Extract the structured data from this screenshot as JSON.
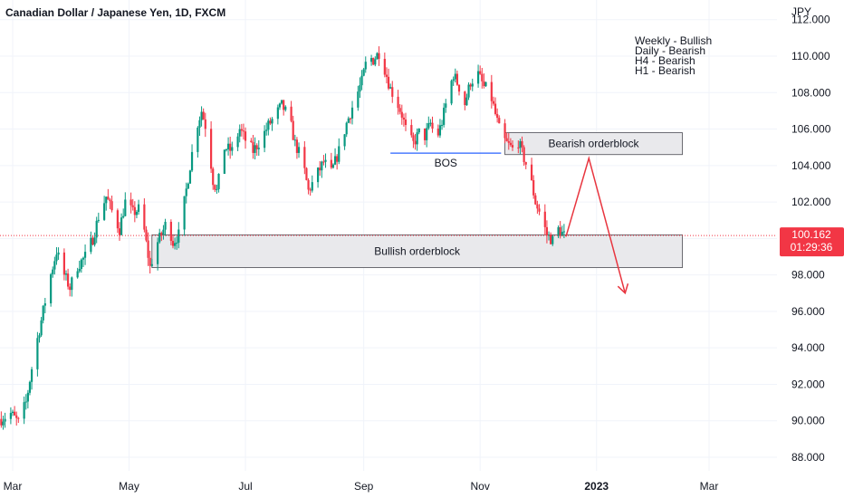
{
  "header": {
    "title": "Canadian Dollar / Japanese Yen, 1D, FXCM",
    "currency": "JPY"
  },
  "notes": [
    "Weekly - Bullish",
    "Daily - Bearish",
    "H4 - Bearish",
    "H1 - Bearish"
  ],
  "price_badge": {
    "price": "100.162",
    "countdown": "01:29:36",
    "color": "#f23645"
  },
  "colors": {
    "up": "#089981",
    "down": "#f23645",
    "arrow": "#e8353f",
    "bos": "#2962ff",
    "box_fill": "#e9e9ec",
    "box_stroke": "#4a4a52",
    "grid": "#f0f3fa"
  },
  "chart_data": {
    "type": "candlestick",
    "title": "Canadian Dollar / Japanese Yen, 1D, FXCM",
    "ylabel": "JPY",
    "ylim": [
      87.6,
      112.2
    ],
    "y_ticks": [
      "88.000",
      "90.000",
      "92.000",
      "94.000",
      "96.000",
      "98.000",
      "100.000",
      "102.000",
      "104.000",
      "106.000",
      "108.000",
      "110.000",
      "112.000"
    ],
    "x_ticks": [
      {
        "label": "Mar",
        "date": "2022-03-01",
        "bold": false
      },
      {
        "label": "May",
        "date": "2022-05-01",
        "bold": false
      },
      {
        "label": "Jul",
        "date": "2022-07-01",
        "bold": false
      },
      {
        "label": "Sep",
        "date": "2022-09-01",
        "bold": false
      },
      {
        "label": "Nov",
        "date": "2022-11-01",
        "bold": false
      },
      {
        "label": "2023",
        "date": "2023-01-01",
        "bold": true
      },
      {
        "label": "Mar",
        "date": "2023-03-01",
        "bold": false
      }
    ],
    "x_range": [
      "2022-02-23",
      "2023-04-10"
    ],
    "last_price": 100.162,
    "price_path": [
      [
        "2022-02-23",
        90.1
      ],
      [
        "2022-02-28",
        90.4
      ],
      [
        "2022-03-04",
        89.9
      ],
      [
        "2022-03-08",
        91.0
      ],
      [
        "2022-03-12",
        93.5
      ],
      [
        "2022-03-16",
        95.5
      ],
      [
        "2022-03-20",
        97.6
      ],
      [
        "2022-03-24",
        99.3
      ],
      [
        "2022-03-28",
        98.0
      ],
      [
        "2022-03-31",
        97.3
      ],
      [
        "2022-04-04",
        98.5
      ],
      [
        "2022-04-08",
        99.0
      ],
      [
        "2022-04-12",
        100.0
      ],
      [
        "2022-04-15",
        101.2
      ],
      [
        "2022-04-19",
        102.3
      ],
      [
        "2022-04-22",
        101.5
      ],
      [
        "2022-04-26",
        100.5
      ],
      [
        "2022-04-29",
        102.0
      ],
      [
        "2022-05-03",
        101.4
      ],
      [
        "2022-05-06",
        101.6
      ],
      [
        "2022-05-09",
        100.4
      ],
      [
        "2022-05-12",
        98.4
      ],
      [
        "2022-05-15",
        99.6
      ],
      [
        "2022-05-18",
        100.2
      ],
      [
        "2022-05-21",
        101.0
      ],
      [
        "2022-05-24",
        99.8
      ],
      [
        "2022-05-27",
        100.2
      ],
      [
        "2022-05-30",
        102.0
      ],
      [
        "2022-06-02",
        104.0
      ],
      [
        "2022-06-05",
        106.0
      ],
      [
        "2022-06-08",
        107.0
      ],
      [
        "2022-06-11",
        105.8
      ],
      [
        "2022-06-14",
        103.2
      ],
      [
        "2022-06-16",
        102.6
      ],
      [
        "2022-06-20",
        105.0
      ],
      [
        "2022-06-24",
        104.8
      ],
      [
        "2022-06-28",
        106.0
      ],
      [
        "2022-07-01",
        105.4
      ],
      [
        "2022-07-05",
        104.8
      ],
      [
        "2022-07-09",
        105.4
      ],
      [
        "2022-07-13",
        106.2
      ],
      [
        "2022-07-17",
        106.8
      ],
      [
        "2022-07-20",
        107.3
      ],
      [
        "2022-07-24",
        106.6
      ],
      [
        "2022-07-27",
        105.2
      ],
      [
        "2022-07-31",
        104.2
      ],
      [
        "2022-08-03",
        102.6
      ],
      [
        "2022-08-07",
        103.4
      ],
      [
        "2022-08-11",
        104.2
      ],
      [
        "2022-08-15",
        103.6
      ],
      [
        "2022-08-19",
        104.8
      ],
      [
        "2022-08-23",
        106.3
      ],
      [
        "2022-08-27",
        107.5
      ],
      [
        "2022-08-31",
        108.6
      ],
      [
        "2022-09-03",
        110.0
      ],
      [
        "2022-09-06",
        109.8
      ],
      [
        "2022-09-09",
        110.2
      ],
      [
        "2022-09-12",
        109.3
      ],
      [
        "2022-09-15",
        108.2
      ],
      [
        "2022-09-18",
        107.6
      ],
      [
        "2022-09-21",
        106.8
      ],
      [
        "2022-09-24",
        105.6
      ],
      [
        "2022-09-27",
        105.2
      ],
      [
        "2022-09-30",
        105.8
      ],
      [
        "2022-10-03",
        105.6
      ],
      [
        "2022-10-06",
        106.3
      ],
      [
        "2022-10-09",
        105.4
      ],
      [
        "2022-10-12",
        106.4
      ],
      [
        "2022-10-15",
        107.8
      ],
      [
        "2022-10-18",
        109.0
      ],
      [
        "2022-10-21",
        108.3
      ],
      [
        "2022-10-24",
        107.4
      ],
      [
        "2022-10-27",
        108.6
      ],
      [
        "2022-10-31",
        109.0
      ],
      [
        "2022-11-03",
        108.3
      ],
      [
        "2022-11-06",
        108.1
      ],
      [
        "2022-11-09",
        106.8
      ],
      [
        "2022-11-12",
        105.6
      ],
      [
        "2022-11-15",
        105.2
      ],
      [
        "2022-11-18",
        104.9
      ],
      [
        "2022-11-21",
        105.3
      ],
      [
        "2022-11-24",
        104.4
      ],
      [
        "2022-11-27",
        103.5
      ],
      [
        "2022-11-30",
        102.0
      ],
      [
        "2022-12-03",
        101.2
      ],
      [
        "2022-12-06",
        100.2
      ],
      [
        "2022-12-09",
        99.9
      ],
      [
        "2022-12-12",
        100.5
      ],
      [
        "2022-12-15",
        100.162
      ]
    ],
    "annotations": {
      "bullish_orderblock": {
        "label": "Bullish orderblock",
        "x": [
          "2022-05-13",
          "2023-02-15"
        ],
        "y": [
          98.4,
          100.2
        ]
      },
      "bearish_orderblock": {
        "label": "Bearish orderblock",
        "x": [
          "2022-11-14",
          "2023-02-15"
        ],
        "y": [
          104.6,
          105.8
        ]
      },
      "bos": {
        "label": "BOS",
        "x": [
          "2022-09-15",
          "2022-11-12"
        ],
        "y": 104.68
      },
      "projection": [
        [
          "2022-12-16",
          100.1
        ],
        [
          "2022-12-28",
          104.4
        ],
        [
          "2023-01-16",
          97.0
        ]
      ],
      "price_line": 100.162
    }
  }
}
